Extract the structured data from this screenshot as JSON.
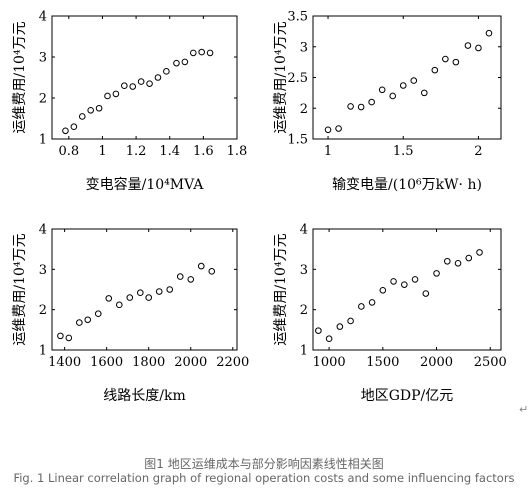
{
  "figure": {
    "caption_cn": "图1 地区运维成本与部分影响因素线性相关图",
    "caption_en": "Fig. 1 Linear correlation graph of regional operation costs and some influencing factors",
    "return_mark": "↵"
  },
  "chart_data": [
    {
      "type": "scatter",
      "xlabel": "变电容量/10⁴MVA",
      "ylabel": "运维费用/10⁴万元",
      "xlim": [
        0.7,
        1.8
      ],
      "ylim": [
        1,
        4
      ],
      "xticks": [
        "0.8",
        "1",
        "1.2",
        "1.4",
        "1.6",
        "1.8"
      ],
      "yticks": [
        "1",
        "2",
        "3",
        "4"
      ],
      "xtick_values": [
        0.8,
        1.0,
        1.2,
        1.4,
        1.6,
        1.8
      ],
      "ytick_values": [
        1,
        2,
        3,
        4
      ],
      "x": [
        0.78,
        0.83,
        0.88,
        0.93,
        0.98,
        1.03,
        1.08,
        1.13,
        1.18,
        1.23,
        1.28,
        1.33,
        1.38,
        1.44,
        1.49,
        1.54,
        1.59,
        1.64
      ],
      "y": [
        1.2,
        1.3,
        1.55,
        1.7,
        1.75,
        2.05,
        2.1,
        2.3,
        2.28,
        2.4,
        2.35,
        2.5,
        2.65,
        2.85,
        2.88,
        3.1,
        3.12,
        3.1
      ]
    },
    {
      "type": "scatter",
      "xlabel": "输变电量/(10⁶万kW· h)",
      "ylabel": "运维费用/10⁴万元",
      "xlim": [
        0.9,
        2.15
      ],
      "ylim": [
        1.5,
        3.5
      ],
      "xticks": [
        "1",
        "1.5",
        "2"
      ],
      "yticks": [
        "1.5",
        "2",
        "2.5",
        "3",
        "3.5"
      ],
      "xtick_values": [
        1.0,
        1.5,
        2.0
      ],
      "ytick_values": [
        1.5,
        2.0,
        2.5,
        3.0,
        3.5
      ],
      "x": [
        1.0,
        1.07,
        1.15,
        1.22,
        1.29,
        1.36,
        1.43,
        1.5,
        1.57,
        1.64,
        1.71,
        1.78,
        1.85,
        1.93,
        2.0,
        2.07
      ],
      "y": [
        1.65,
        1.67,
        2.03,
        2.02,
        2.1,
        2.3,
        2.2,
        2.37,
        2.45,
        2.25,
        2.62,
        2.8,
        2.75,
        3.02,
        2.98,
        3.22
      ]
    },
    {
      "type": "scatter",
      "xlabel": "线路长度/km",
      "ylabel": "运维费用/10⁴万元",
      "xlim": [
        1340,
        2220
      ],
      "ylim": [
        1,
        4
      ],
      "xticks": [
        "1400",
        "1600",
        "1800",
        "2000",
        "2200"
      ],
      "yticks": [
        "1",
        "2",
        "3",
        "4"
      ],
      "xtick_values": [
        1400,
        1600,
        1800,
        2000,
        2200
      ],
      "ytick_values": [
        1,
        2,
        3,
        4
      ],
      "x": [
        1380,
        1420,
        1470,
        1510,
        1560,
        1610,
        1660,
        1710,
        1760,
        1800,
        1850,
        1900,
        1950,
        2000,
        2050,
        2100
      ],
      "y": [
        1.35,
        1.3,
        1.68,
        1.75,
        1.9,
        2.28,
        2.12,
        2.3,
        2.42,
        2.3,
        2.45,
        2.5,
        2.82,
        2.75,
        3.08,
        2.95
      ]
    },
    {
      "type": "scatter",
      "xlabel": "地区GDP/亿元",
      "ylabel": "运维费用/10⁴万元",
      "xlim": [
        850,
        2600
      ],
      "ylim": [
        1,
        4
      ],
      "xticks": [
        "1000",
        "1500",
        "2000",
        "2500"
      ],
      "yticks": [
        "1",
        "2",
        "3",
        "4"
      ],
      "xtick_values": [
        1000,
        1500,
        2000,
        2500
      ],
      "ytick_values": [
        1,
        2,
        3,
        4
      ],
      "x": [
        900,
        1000,
        1100,
        1200,
        1300,
        1400,
        1500,
        1600,
        1700,
        1800,
        1900,
        2000,
        2100,
        2200,
        2300,
        2400
      ],
      "y": [
        1.48,
        1.28,
        1.58,
        1.72,
        2.08,
        2.18,
        2.48,
        2.7,
        2.62,
        2.75,
        2.4,
        2.9,
        3.2,
        3.15,
        3.28,
        3.42
      ]
    }
  ]
}
